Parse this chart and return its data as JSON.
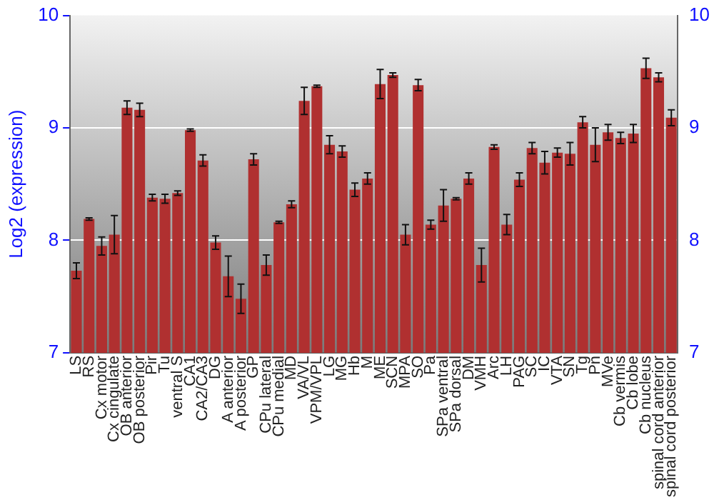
{
  "chart_data": {
    "type": "bar",
    "ylabel": "Log2 (expression)",
    "categories": [
      "LS",
      "RS",
      "Cx motor",
      "Cx cingulate",
      "OB anterior",
      "OB posterior",
      "Pir",
      "Tu",
      "ventral S",
      "CA1",
      "CA2/CA3",
      "DG",
      "A anterior",
      "A posterior",
      "GP",
      "CPu lateral",
      "CPu medial",
      "MD",
      "VA/VL",
      "VPM/VPL",
      "LG",
      "MG",
      "Hb",
      "M",
      "ME",
      "SCN",
      "MPA",
      "SO",
      "Pa",
      "SPa ventral",
      "SPa dorsal",
      "DM",
      "VMH",
      "Arc",
      "LH",
      "PAG",
      "SC",
      "IC",
      "VTA",
      "SN",
      "Tg",
      "Pn",
      "MVe",
      "Cb vermis",
      "Cb lobe",
      "Cb nucleus",
      "spinal cord anterior",
      "spinal cord posterior"
    ],
    "values": [
      7.73,
      8.19,
      7.95,
      8.05,
      9.18,
      9.16,
      8.38,
      8.37,
      8.42,
      8.98,
      8.71,
      7.98,
      7.68,
      7.48,
      8.72,
      7.78,
      8.16,
      8.32,
      9.24,
      9.37,
      8.85,
      8.79,
      8.45,
      8.55,
      9.39,
      9.47,
      8.05,
      9.38,
      8.14,
      8.31,
      8.37,
      8.55,
      7.78,
      8.83,
      8.14,
      8.54,
      8.82,
      8.69,
      8.78,
      8.77,
      9.05,
      8.85,
      8.96,
      8.91,
      8.95,
      9.53,
      9.45,
      9.09
    ],
    "errors": [
      0.07,
      0.01,
      0.08,
      0.17,
      0.06,
      0.06,
      0.03,
      0.04,
      0.02,
      0.01,
      0.05,
      0.06,
      0.18,
      0.13,
      0.05,
      0.09,
      0.01,
      0.03,
      0.12,
      0.01,
      0.08,
      0.05,
      0.06,
      0.05,
      0.13,
      0.02,
      0.09,
      0.05,
      0.04,
      0.14,
      0.01,
      0.05,
      0.15,
      0.02,
      0.09,
      0.06,
      0.05,
      0.1,
      0.04,
      0.1,
      0.05,
      0.15,
      0.07,
      0.05,
      0.08,
      0.09,
      0.04,
      0.07
    ],
    "color": "#b03030",
    "ylim": [
      7,
      10
    ],
    "yticks": [
      7,
      8,
      9,
      10
    ],
    "y2lim": [
      7,
      10
    ],
    "y2ticks": [
      7,
      8,
      9,
      10
    ],
    "grid": "y",
    "legend": false
  }
}
